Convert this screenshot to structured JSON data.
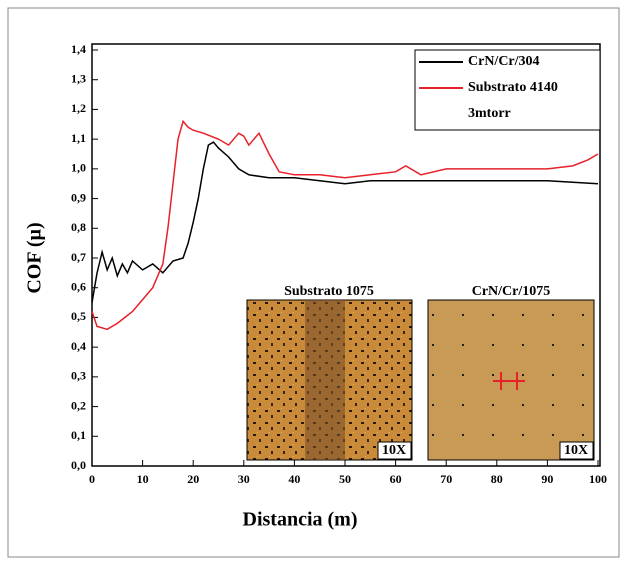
{
  "chart_data": {
    "type": "line",
    "xlabel": "Distancia (m)",
    "ylabel": "COF (µ)",
    "xlim": [
      0,
      100
    ],
    "xticks": [
      0,
      10,
      20,
      30,
      40,
      50,
      60,
      70,
      80,
      90,
      100
    ],
    "ylim": [
      0,
      1.4
    ],
    "yticks": [
      {
        "value": 0,
        "label": "0,0"
      },
      {
        "value": 0.1,
        "label": "0,1"
      },
      {
        "value": 0.2,
        "label": "0,2"
      },
      {
        "value": 0.3,
        "label": "0,3"
      },
      {
        "value": 0.4,
        "label": "0,4"
      },
      {
        "value": 0.5,
        "label": "0,5"
      },
      {
        "value": 0.6,
        "label": "0,6"
      },
      {
        "value": 0.7,
        "label": "0,7"
      },
      {
        "value": 0.8,
        "label": "0,8"
      },
      {
        "value": 0.9,
        "label": "0,9"
      },
      {
        "value": 1.0,
        "label": "1,0"
      },
      {
        "value": 1.1,
        "label": "1,1"
      },
      {
        "value": 1.2,
        "label": "1,2"
      },
      {
        "value": 1.3,
        "label": "1,3"
      },
      {
        "value": 1.4,
        "label": "1,4"
      }
    ],
    "legend_position": "upper right",
    "legend_note": "3mtorr",
    "series": [
      {
        "name": "CrN/Cr/304",
        "color": "#000000",
        "x": [
          0,
          1,
          2,
          3,
          4,
          5,
          6,
          7,
          8,
          10,
          12,
          14,
          16,
          18,
          19,
          20,
          21,
          22,
          23,
          24,
          25,
          27,
          29,
          31,
          35,
          40,
          45,
          50,
          55,
          60,
          70,
          80,
          90,
          100
        ],
        "values": [
          0.55,
          0.65,
          0.72,
          0.66,
          0.7,
          0.64,
          0.68,
          0.65,
          0.69,
          0.66,
          0.68,
          0.65,
          0.69,
          0.7,
          0.75,
          0.82,
          0.9,
          1.0,
          1.08,
          1.09,
          1.07,
          1.04,
          1.0,
          0.98,
          0.97,
          0.97,
          0.96,
          0.95,
          0.96,
          0.96,
          0.96,
          0.96,
          0.96,
          0.95
        ]
      },
      {
        "name": "Substrato 4140",
        "color": "#e8202a",
        "x": [
          0,
          1,
          3,
          5,
          8,
          10,
          12,
          14,
          15,
          16,
          17,
          18,
          19,
          20,
          22,
          25,
          27,
          29,
          30,
          31,
          33,
          35,
          37,
          40,
          45,
          50,
          55,
          60,
          62,
          65,
          70,
          75,
          80,
          85,
          90,
          95,
          98,
          100
        ],
        "values": [
          0.52,
          0.47,
          0.46,
          0.48,
          0.52,
          0.56,
          0.6,
          0.68,
          0.8,
          0.95,
          1.1,
          1.16,
          1.14,
          1.13,
          1.12,
          1.1,
          1.08,
          1.12,
          1.11,
          1.08,
          1.12,
          1.05,
          0.99,
          0.98,
          0.98,
          0.97,
          0.98,
          0.99,
          1.01,
          0.98,
          1.0,
          1.0,
          1.0,
          1.0,
          1.0,
          1.01,
          1.03,
          1.05
        ]
      }
    ],
    "insets": [
      {
        "title": "Substrato 1075",
        "magnification": "10X"
      },
      {
        "title": "CrN/Cr/1075",
        "magnification": "10X"
      }
    ]
  }
}
